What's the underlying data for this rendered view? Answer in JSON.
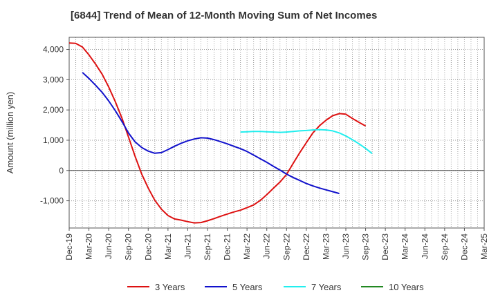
{
  "chart_data": {
    "type": "line",
    "title": "[6844]  Trend of Mean of 12-Month Moving Sum of Net Incomes",
    "xlabel": "",
    "ylabel": "Amount (million yen)",
    "ylim": [
      -1900,
      4400
    ],
    "yticks": [
      4000,
      3000,
      2000,
      1000,
      0,
      -1000
    ],
    "ytick_labels": [
      "4,000",
      "3,000",
      "2,000",
      "1,000",
      "0",
      "-1,000"
    ],
    "x_categories": [
      "Dec-19",
      "Mar-20",
      "Jun-20",
      "Sep-20",
      "Dec-20",
      "Mar-21",
      "Jun-21",
      "Sep-21",
      "Dec-21",
      "Mar-22",
      "Jun-22",
      "Sep-22",
      "Dec-22",
      "Mar-23",
      "Jun-23",
      "Sep-23",
      "Dec-23",
      "Mar-24",
      "Jun-24",
      "Sep-24",
      "Dec-24",
      "Mar-25"
    ],
    "grid": "vertical-dotted",
    "legend_position": "bottom",
    "series": [
      {
        "name": "3 Years",
        "color": "#dd1111",
        "points": [
          [
            0,
            4210
          ],
          [
            0.33,
            4200
          ],
          [
            0.67,
            4080
          ],
          [
            1,
            3820
          ],
          [
            1.33,
            3520
          ],
          [
            1.67,
            3180
          ],
          [
            2,
            2760
          ],
          [
            2.33,
            2280
          ],
          [
            2.67,
            1730
          ],
          [
            3,
            1110
          ],
          [
            3.33,
            480
          ],
          [
            3.67,
            -120
          ],
          [
            4,
            -580
          ],
          [
            4.33,
            -980
          ],
          [
            4.67,
            -1280
          ],
          [
            5,
            -1490
          ],
          [
            5.33,
            -1600
          ],
          [
            5.67,
            -1640
          ],
          [
            6,
            -1690
          ],
          [
            6.33,
            -1730
          ],
          [
            6.67,
            -1720
          ],
          [
            7,
            -1660
          ],
          [
            7.33,
            -1590
          ],
          [
            7.67,
            -1510
          ],
          [
            8,
            -1440
          ],
          [
            8.33,
            -1370
          ],
          [
            8.67,
            -1310
          ],
          [
            9,
            -1230
          ],
          [
            9.33,
            -1140
          ],
          [
            9.67,
            -990
          ],
          [
            10,
            -800
          ],
          [
            10.33,
            -590
          ],
          [
            10.67,
            -380
          ],
          [
            11,
            -130
          ],
          [
            11.33,
            230
          ],
          [
            11.67,
            590
          ],
          [
            12,
            920
          ],
          [
            12.33,
            1240
          ],
          [
            12.67,
            1480
          ],
          [
            13,
            1660
          ],
          [
            13.33,
            1810
          ],
          [
            13.67,
            1880
          ],
          [
            14,
            1860
          ],
          [
            14.33,
            1720
          ],
          [
            14.67,
            1590
          ],
          [
            15,
            1470
          ]
        ]
      },
      {
        "name": "5 Years",
        "color": "#1111cc",
        "points": [
          [
            0.67,
            3240
          ],
          [
            1,
            3040
          ],
          [
            1.33,
            2820
          ],
          [
            1.67,
            2580
          ],
          [
            2,
            2300
          ],
          [
            2.33,
            1980
          ],
          [
            2.67,
            1620
          ],
          [
            3,
            1240
          ],
          [
            3.33,
            950
          ],
          [
            3.67,
            760
          ],
          [
            4,
            640
          ],
          [
            4.33,
            570
          ],
          [
            4.67,
            590
          ],
          [
            5,
            690
          ],
          [
            5.33,
            800
          ],
          [
            5.67,
            900
          ],
          [
            6,
            980
          ],
          [
            6.33,
            1040
          ],
          [
            6.67,
            1080
          ],
          [
            7,
            1070
          ],
          [
            7.33,
            1020
          ],
          [
            7.67,
            950
          ],
          [
            8,
            880
          ],
          [
            8.33,
            800
          ],
          [
            8.67,
            720
          ],
          [
            9,
            630
          ],
          [
            9.33,
            510
          ],
          [
            9.67,
            390
          ],
          [
            10,
            270
          ],
          [
            10.33,
            140
          ],
          [
            10.67,
            10
          ],
          [
            11,
            -120
          ],
          [
            11.33,
            -230
          ],
          [
            11.67,
            -330
          ],
          [
            12,
            -430
          ],
          [
            12.33,
            -510
          ],
          [
            12.67,
            -580
          ],
          [
            13,
            -640
          ],
          [
            13.33,
            -700
          ],
          [
            13.67,
            -760
          ]
        ]
      },
      {
        "name": "7 Years",
        "color": "#22eeee",
        "points": [
          [
            8.67,
            1270
          ],
          [
            9,
            1280
          ],
          [
            9.33,
            1290
          ],
          [
            9.67,
            1290
          ],
          [
            10,
            1280
          ],
          [
            10.33,
            1270
          ],
          [
            10.67,
            1260
          ],
          [
            11,
            1270
          ],
          [
            11.33,
            1290
          ],
          [
            11.67,
            1310
          ],
          [
            12,
            1320
          ],
          [
            12.33,
            1340
          ],
          [
            12.67,
            1350
          ],
          [
            13,
            1340
          ],
          [
            13.33,
            1310
          ],
          [
            13.67,
            1240
          ],
          [
            14,
            1140
          ],
          [
            14.33,
            1020
          ],
          [
            14.67,
            880
          ],
          [
            15,
            730
          ],
          [
            15.33,
            560
          ]
        ]
      },
      {
        "name": "10 Years",
        "color": "#228822",
        "points": []
      }
    ]
  }
}
